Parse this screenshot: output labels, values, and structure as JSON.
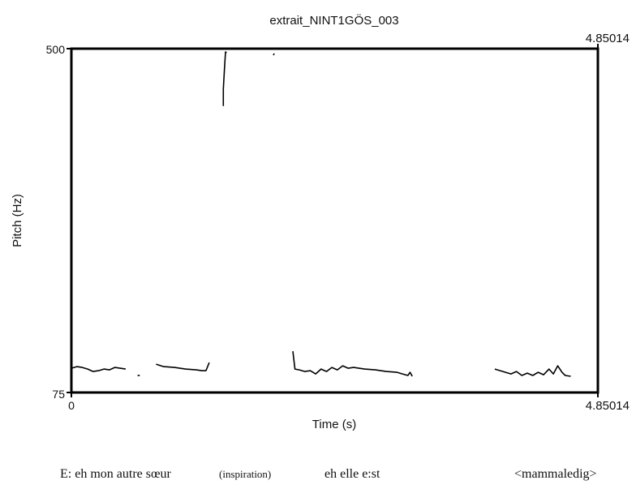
{
  "chart_data": {
    "type": "line",
    "title": "extrait_NINT1GÖS_003",
    "xlabel": "Time (s)",
    "ylabel": "Pitch (Hz)",
    "xlim": [
      0,
      4.85014
    ],
    "ylim": [
      75,
      500
    ],
    "x_tick_labels": {
      "left": "0",
      "right_top": "4.85014",
      "right_bottom": "4.85014"
    },
    "y_tick_labels": {
      "top": "500",
      "bottom": "75"
    },
    "grid": false,
    "series": [
      {
        "points": [
          [
            0.0,
            105
          ],
          [
            0.05,
            107
          ],
          [
            0.1,
            106
          ],
          [
            0.15,
            104
          ],
          [
            0.2,
            101
          ],
          [
            0.25,
            102
          ],
          [
            0.3,
            104
          ],
          [
            0.35,
            103
          ],
          [
            0.4,
            106
          ],
          [
            0.45,
            105
          ],
          [
            0.5,
            104
          ]
        ]
      },
      {
        "points": [
          [
            0.61,
            96
          ],
          [
            0.63,
            96
          ]
        ]
      },
      {
        "points": [
          [
            0.78,
            110
          ],
          [
            0.85,
            107
          ],
          [
            0.95,
            106
          ],
          [
            1.05,
            104
          ],
          [
            1.15,
            103
          ],
          [
            1.2,
            102
          ],
          [
            1.24,
            102
          ],
          [
            1.27,
            112
          ]
        ]
      },
      {
        "points": [
          [
            1.4,
            429
          ],
          [
            1.4,
            450
          ],
          [
            1.41,
            475
          ],
          [
            1.42,
            496
          ],
          [
            1.43,
            495
          ]
        ]
      },
      {
        "points": [
          [
            1.86,
            492
          ],
          [
            1.87,
            494
          ]
        ]
      },
      {
        "points": [
          [
            2.04,
            126
          ],
          [
            2.06,
            104
          ],
          [
            2.1,
            103
          ],
          [
            2.15,
            101
          ],
          [
            2.2,
            102
          ],
          [
            2.25,
            98
          ],
          [
            2.3,
            104
          ],
          [
            2.35,
            101
          ],
          [
            2.4,
            106
          ],
          [
            2.45,
            103
          ],
          [
            2.5,
            108
          ],
          [
            2.55,
            105
          ],
          [
            2.6,
            106
          ],
          [
            2.7,
            104
          ],
          [
            2.8,
            103
          ],
          [
            2.9,
            101
          ],
          [
            3.0,
            100
          ],
          [
            3.05,
            98
          ],
          [
            3.1,
            96
          ],
          [
            3.12,
            100
          ],
          [
            3.14,
            95
          ]
        ]
      },
      {
        "points": [
          [
            3.9,
            104
          ],
          [
            3.95,
            102
          ],
          [
            4.0,
            100
          ],
          [
            4.05,
            98
          ],
          [
            4.1,
            101
          ],
          [
            4.15,
            96
          ],
          [
            4.2,
            99
          ],
          [
            4.25,
            96
          ],
          [
            4.3,
            100
          ],
          [
            4.35,
            97
          ],
          [
            4.4,
            104
          ],
          [
            4.44,
            98
          ],
          [
            4.48,
            108
          ],
          [
            4.52,
            100
          ],
          [
            4.55,
            96
          ],
          [
            4.6,
            95
          ]
        ]
      }
    ]
  },
  "captions": {
    "speaker_text": "E: eh mon autre sœur",
    "inspiration": "(inspiration)",
    "continuation": "eh elle e:st",
    "tag": "<mammaledig>"
  }
}
